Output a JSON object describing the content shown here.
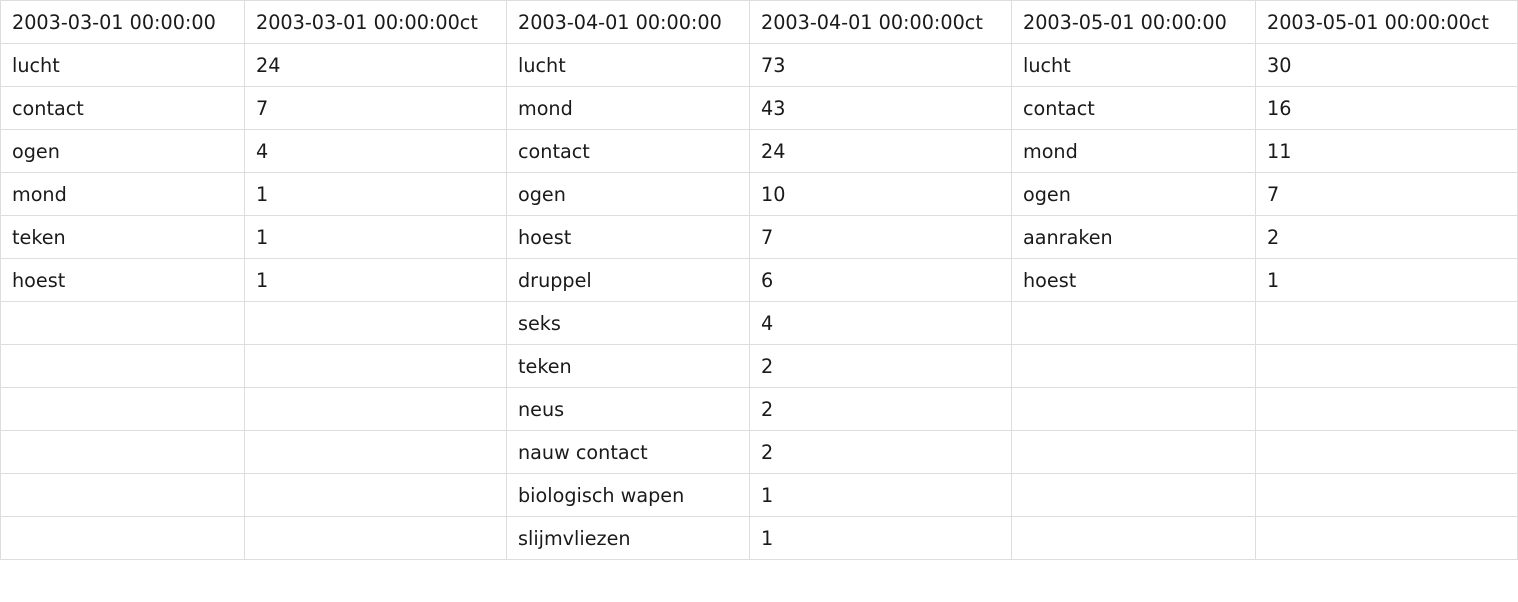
{
  "table": {
    "headers": [
      "2003-03-01 00:00:00",
      "2003-03-01 00:00:00ct",
      "2003-04-01 00:00:00",
      "2003-04-01 00:00:00ct",
      "2003-05-01 00:00:00",
      "2003-05-01 00:00:00ct"
    ],
    "rows": [
      [
        "lucht",
        "24",
        "lucht",
        "73",
        "lucht",
        "30"
      ],
      [
        "contact",
        "7",
        "mond",
        "43",
        "contact",
        "16"
      ],
      [
        "ogen",
        "4",
        "contact",
        "24",
        "mond",
        "11"
      ],
      [
        "mond",
        "1",
        "ogen",
        "10",
        "ogen",
        "7"
      ],
      [
        "teken",
        "1",
        "hoest",
        "7",
        "aanraken",
        "2"
      ],
      [
        "hoest",
        "1",
        "druppel",
        "6",
        "hoest",
        "1"
      ],
      [
        "",
        "",
        "seks",
        "4",
        "",
        ""
      ],
      [
        "",
        "",
        "teken",
        "2",
        "",
        ""
      ],
      [
        "",
        "",
        "neus",
        "2",
        "",
        ""
      ],
      [
        "",
        "",
        "nauw contact",
        "2",
        "",
        ""
      ],
      [
        "",
        "",
        "biologisch wapen",
        "1",
        "",
        ""
      ],
      [
        "",
        "",
        "slijmvliezen",
        "1",
        "",
        ""
      ]
    ]
  }
}
